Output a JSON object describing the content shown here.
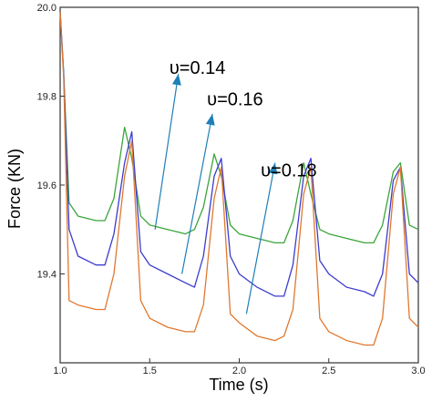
{
  "chart_data": {
    "type": "line",
    "title": "",
    "xlabel": "Time (s)",
    "ylabel": "Force (KN)",
    "xlim": [
      1.0,
      3.0
    ],
    "ylim": [
      19.2,
      20.0
    ],
    "x_ticks": [
      "1.0",
      "1.5",
      "2.0",
      "2.5",
      "3.0"
    ],
    "y_ticks": [
      "19.4",
      "19.6",
      "19.8",
      "20.0"
    ],
    "y_tick_values": [
      19.4,
      19.6,
      19.8,
      20.0
    ],
    "x_tick_values": [
      1.0,
      1.5,
      2.0,
      2.5,
      3.0
    ],
    "grid": false,
    "legend": "none",
    "series": [
      {
        "color": "#3aa53a",
        "x": [
          1.0,
          1.02,
          1.05,
          1.1,
          1.2,
          1.25,
          1.3,
          1.36,
          1.4,
          1.45,
          1.5,
          1.6,
          1.7,
          1.75,
          1.8,
          1.86,
          1.9,
          1.95,
          2.0,
          2.1,
          2.2,
          2.25,
          2.3,
          2.36,
          2.4,
          2.45,
          2.5,
          2.6,
          2.7,
          2.75,
          2.8,
          2.86,
          2.9,
          2.95,
          3.0
        ],
        "y": [
          19.99,
          19.85,
          19.56,
          19.53,
          19.52,
          19.52,
          19.57,
          19.73,
          19.66,
          19.53,
          19.51,
          19.5,
          19.49,
          19.5,
          19.55,
          19.67,
          19.62,
          19.51,
          19.49,
          19.48,
          19.47,
          19.47,
          19.52,
          19.65,
          19.58,
          19.5,
          19.49,
          19.48,
          19.47,
          19.47,
          19.51,
          19.63,
          19.65,
          19.51,
          19.5
        ]
      },
      {
        "color": "#3c3ccf",
        "x": [
          1.0,
          1.02,
          1.05,
          1.1,
          1.2,
          1.25,
          1.3,
          1.36,
          1.4,
          1.45,
          1.5,
          1.6,
          1.7,
          1.75,
          1.8,
          1.86,
          1.9,
          1.95,
          2.0,
          2.1,
          2.2,
          2.25,
          2.3,
          2.36,
          2.4,
          2.45,
          2.5,
          2.6,
          2.7,
          2.75,
          2.8,
          2.86,
          2.9,
          2.95,
          3.0
        ],
        "y": [
          19.99,
          19.85,
          19.5,
          19.44,
          19.42,
          19.42,
          19.49,
          19.65,
          19.72,
          19.45,
          19.42,
          19.4,
          19.38,
          19.37,
          19.44,
          19.62,
          19.66,
          19.44,
          19.4,
          19.37,
          19.35,
          19.35,
          19.42,
          19.62,
          19.66,
          19.43,
          19.4,
          19.37,
          19.36,
          19.35,
          19.4,
          19.61,
          19.64,
          19.4,
          19.38
        ]
      },
      {
        "color": "#e07830",
        "x": [
          1.0,
          1.02,
          1.05,
          1.1,
          1.2,
          1.25,
          1.3,
          1.36,
          1.4,
          1.45,
          1.5,
          1.6,
          1.7,
          1.75,
          1.8,
          1.86,
          1.9,
          1.95,
          2.0,
          2.1,
          2.2,
          2.25,
          2.3,
          2.36,
          2.4,
          2.45,
          2.5,
          2.6,
          2.7,
          2.75,
          2.8,
          2.86,
          2.9,
          2.95,
          3.0
        ],
        "y": [
          19.99,
          19.84,
          19.34,
          19.33,
          19.32,
          19.32,
          19.4,
          19.62,
          19.7,
          19.34,
          19.3,
          19.28,
          19.27,
          19.27,
          19.33,
          19.57,
          19.64,
          19.31,
          19.29,
          19.26,
          19.25,
          19.26,
          19.32,
          19.58,
          19.64,
          19.3,
          19.27,
          19.25,
          19.24,
          19.24,
          19.3,
          19.58,
          19.64,
          19.3,
          19.28
        ]
      }
    ],
    "annotations": [
      {
        "text": "υ=0.14",
        "x": 1.61,
        "y": 19.85,
        "arrow_from": [
          1.53,
          19.5
        ],
        "arrow_to": [
          1.66,
          19.85
        ]
      },
      {
        "text": "υ=0.16",
        "x": 1.82,
        "y": 19.78,
        "arrow_from": [
          1.68,
          19.4
        ],
        "arrow_to": [
          1.85,
          19.76
        ]
      },
      {
        "text": "υ=0.18",
        "x": 2.12,
        "y": 19.62,
        "arrow_from": [
          2.04,
          19.31
        ],
        "arrow_to": [
          2.2,
          19.65
        ]
      }
    ],
    "arrow_color": "#1e7fb8"
  }
}
